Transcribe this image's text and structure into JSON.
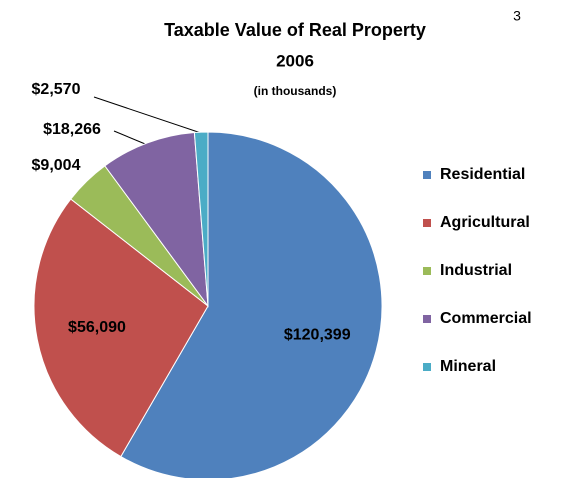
{
  "page_number": "3",
  "chart_data": {
    "type": "pie",
    "title": "Taxable Value of Real Property",
    "subtitle": "2006",
    "note": "(in thousands)",
    "categories": [
      "Residential",
      "Agricultural",
      "Industrial",
      "Commercial",
      "Mineral"
    ],
    "values": [
      120399,
      56090,
      9004,
      18266,
      2570
    ],
    "value_labels": [
      "$120,399",
      "$56,090",
      "$9,004",
      "$18,266",
      "$2,570"
    ],
    "colors": [
      "#4f81bd",
      "#c0504d",
      "#9bbb59",
      "#8064a2",
      "#4bacc6"
    ],
    "legend": "right"
  }
}
